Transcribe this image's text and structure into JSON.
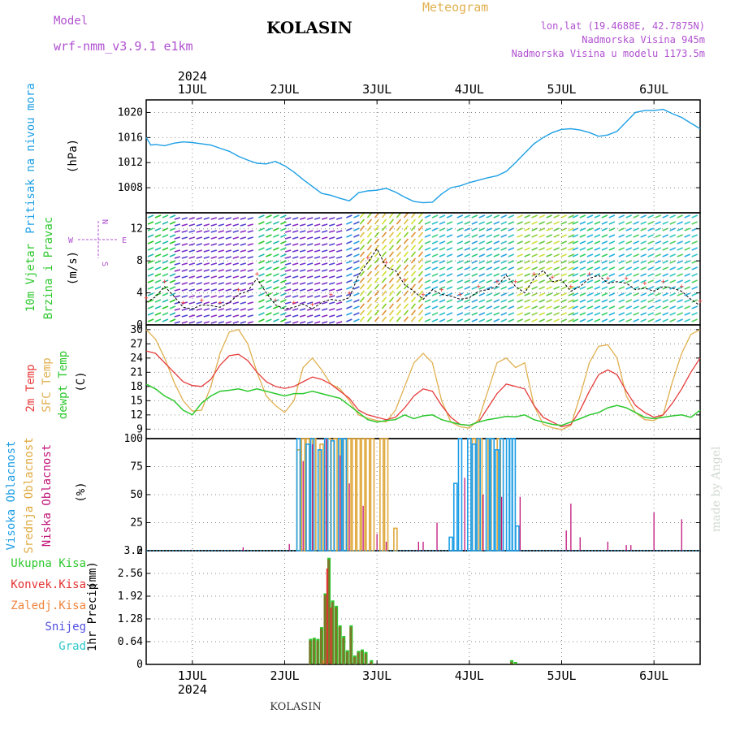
{
  "header": {
    "model_label": "Model",
    "model_name": "wrf-nmm_v3.9.1  e1km",
    "title": "KOLASIN",
    "meteogram_label": "Meteogram",
    "coords": "lon,lat (19.4688E, 42.7875N)",
    "altitude": "Nadmorska Visina 945m",
    "model_altitude": "Nadmorska Visina u modelu 1173.5m"
  },
  "footer_title": "KOLASIN",
  "watermark": "made by Angel",
  "colors": {
    "pressure": "#1ea0e6",
    "temp2m": "#e63c3c",
    "sfc": "#e0b050",
    "dew": "#2ec82e",
    "purple": "#b050d0",
    "high": "#1e9ee6",
    "mid": "#e0aa40",
    "low": "#c0147a",
    "precip_total": "#2ec82e",
    "precip_conv": "#e63232",
    "precip_frz": "#f0843c",
    "precip_snow": "#5050e0",
    "precip_grad": "#30c8c8",
    "precip_bar": "#7a7a28"
  },
  "chart_data": {
    "type": "line",
    "year": "2024",
    "x_axis": {
      "ticks": [
        "1JUL",
        "2JUL",
        "3JUL",
        "4JUL",
        "5JUL",
        "6JUL"
      ],
      "xlim_days": [
        0.5,
        6.5
      ]
    },
    "panels": [
      {
        "id": "pressure",
        "ylabel": "Pritisak na nivou mora",
        "unit": "(hPa)",
        "ylim": [
          1004,
          1022
        ],
        "yticks": [
          1008,
          1012,
          1016,
          1020
        ],
        "series": [
          {
            "key": "pressure",
            "color": "#1ea0e6",
            "x": [
              0.5,
              0.55,
              0.6,
              0.7,
              0.8,
              0.9,
              1.0,
              1.1,
              1.2,
              1.3,
              1.4,
              1.5,
              1.6,
              1.7,
              1.8,
              1.9,
              2.0,
              2.1,
              2.2,
              2.3,
              2.4,
              2.5,
              2.6,
              2.7,
              2.8,
              2.9,
              3.0,
              3.1,
              3.2,
              3.3,
              3.4,
              3.5,
              3.6,
              3.7,
              3.8,
              3.9,
              4.0,
              4.1,
              4.2,
              4.3,
              4.4,
              4.5,
              4.6,
              4.7,
              4.8,
              4.9,
              5.0,
              5.1,
              5.2,
              5.3,
              5.4,
              5.5,
              5.6,
              5.7,
              5.8,
              5.9,
              6.0,
              6.1,
              6.2,
              6.3,
              6.4,
              6.5
            ],
            "y": [
              1016,
              1014.8,
              1014.9,
              1014.7,
              1015.1,
              1015.3,
              1015.2,
              1015.0,
              1014.8,
              1014.3,
              1013.8,
              1013.0,
              1012.4,
              1011.9,
              1011.8,
              1012.2,
              1011.5,
              1010.5,
              1009.3,
              1008.2,
              1007.1,
              1006.8,
              1006.3,
              1005.9,
              1007.2,
              1007.5,
              1007.6,
              1007.9,
              1007.3,
              1006.5,
              1005.8,
              1005.6,
              1005.7,
              1007.0,
              1008.0,
              1008.3,
              1008.8,
              1009.2,
              1009.6,
              1009.9,
              1010.6,
              1012.0,
              1013.5,
              1015.0,
              1016.0,
              1016.8,
              1017.3,
              1017.4,
              1017.2,
              1016.8,
              1016.2,
              1016.4,
              1017.0,
              1018.5,
              1020.0,
              1020.3,
              1020.3,
              1020.5,
              1019.8,
              1019.2,
              1018.3,
              1017.4
            ]
          }
        ]
      },
      {
        "id": "wind",
        "ylabel": [
          "10m  Vjetar",
          "Brzina i Pravac"
        ],
        "unit": "(m/s)",
        "ylim": [
          0,
          14
        ],
        "yticks": [
          0,
          4,
          8,
          12
        ],
        "compass": {
          "n": "N",
          "s": "S",
          "e": "E",
          "w": "W"
        },
        "series": [
          {
            "key": "wind10m",
            "color": "#000000",
            "x": [
              0.5,
              0.6,
              0.7,
              0.8,
              0.9,
              1.0,
              1.1,
              1.2,
              1.3,
              1.4,
              1.5,
              1.6,
              1.7,
              1.8,
              1.9,
              2.0,
              2.1,
              2.2,
              2.3,
              2.4,
              2.5,
              2.6,
              2.7,
              2.8,
              2.9,
              3.0,
              3.1,
              3.2,
              3.3,
              3.4,
              3.5,
              3.6,
              3.7,
              3.8,
              3.9,
              4.0,
              4.1,
              4.2,
              4.3,
              4.4,
              4.5,
              4.6,
              4.7,
              4.8,
              4.9,
              5.0,
              5.1,
              5.2,
              5.3,
              5.4,
              5.5,
              5.6,
              5.7,
              5.8,
              5.9,
              6.0,
              6.1,
              6.2,
              6.3,
              6.4,
              6.5
            ],
            "y": [
              2.8,
              3.5,
              4.8,
              3.6,
              2.2,
              2.0,
              2.5,
              2.4,
              2.2,
              2.8,
              3.8,
              4.2,
              5.8,
              4.0,
              2.5,
              2.0,
              2.2,
              2.6,
              2.0,
              2.8,
              3.2,
              3.0,
              3.4,
              6.2,
              7.8,
              9.5,
              7.2,
              6.8,
              5.0,
              4.2,
              3.2,
              4.4,
              3.8,
              3.6,
              3.2,
              3.4,
              4.2,
              4.4,
              4.8,
              6.2,
              4.8,
              4.0,
              5.8,
              6.8,
              5.4,
              5.6,
              4.2,
              4.8,
              5.8,
              6.2,
              5.2,
              5.4,
              5.2,
              4.4,
              4.6,
              4.2,
              4.8,
              4.6,
              4.2,
              3.2,
              2.4
            ]
          }
        ]
      },
      {
        "id": "temperature",
        "ylabel": [
          "2m  Temp",
          "SFC  Temp",
          "dewpt  Temp"
        ],
        "unit": "(C)",
        "ylim": [
          7,
          31
        ],
        "yticks": [
          9,
          12,
          15,
          18,
          21,
          24,
          27,
          30
        ],
        "series": [
          {
            "key": "temp2m",
            "color": "#e63c3c",
            "x": [
              0.5,
              0.6,
              0.7,
              0.8,
              0.9,
              1.0,
              1.1,
              1.2,
              1.3,
              1.4,
              1.5,
              1.6,
              1.7,
              1.8,
              1.9,
              2.0,
              2.1,
              2.2,
              2.3,
              2.4,
              2.5,
              2.6,
              2.7,
              2.8,
              2.9,
              3.0,
              3.1,
              3.2,
              3.3,
              3.4,
              3.5,
              3.6,
              3.7,
              3.8,
              3.9,
              4.0,
              4.1,
              4.2,
              4.3,
              4.4,
              4.5,
              4.6,
              4.7,
              4.8,
              4.9,
              5.0,
              5.1,
              5.2,
              5.3,
              5.4,
              5.5,
              5.6,
              5.7,
              5.8,
              5.9,
              6.0,
              6.1,
              6.2,
              6.3,
              6.4,
              6.5
            ],
            "y": [
              25.5,
              25,
              23,
              21,
              19,
              18.2,
              18,
              19.5,
              22.5,
              24.5,
              24.8,
              23.5,
              21,
              19,
              18,
              17.6,
              18,
              19,
              20,
              19.5,
              18.5,
              17,
              15.5,
              13,
              12,
              11.5,
              11,
              11.5,
              13.5,
              16,
              17.5,
              17,
              14,
              11.5,
              10,
              9.8,
              10.5,
              13.5,
              16.5,
              18.5,
              18,
              17.5,
              14,
              11.5,
              10.5,
              9.5,
              10,
              13,
              17,
              20.5,
              21.5,
              20.5,
              17,
              14,
              12.5,
              11.5,
              12,
              14.5,
              17.5,
              21,
              24
            ]
          },
          {
            "key": "sfc",
            "color": "#e0b050",
            "x": [
              0.5,
              0.6,
              0.7,
              0.8,
              0.9,
              1.0,
              1.1,
              1.2,
              1.3,
              1.4,
              1.5,
              1.6,
              1.7,
              1.8,
              1.9,
              2.0,
              2.1,
              2.2,
              2.3,
              2.4,
              2.5,
              2.6,
              2.7,
              2.8,
              2.9,
              3.0,
              3.1,
              3.2,
              3.3,
              3.4,
              3.5,
              3.6,
              3.7,
              3.8,
              3.9,
              4.0,
              4.1,
              4.2,
              4.3,
              4.4,
              4.5,
              4.6,
              4.7,
              4.8,
              4.9,
              5.0,
              5.1,
              5.2,
              5.3,
              5.4,
              5.5,
              5.6,
              5.7,
              5.8,
              5.9,
              6.0,
              6.1,
              6.2,
              6.3,
              6.4,
              6.5
            ],
            "y": [
              30,
              28,
              24,
              19,
              15,
              12.8,
              13,
              18,
              25,
              29.5,
              30,
              27,
              21,
              16,
              14,
              12.5,
              15,
              22,
              24,
              21.5,
              18.5,
              17.5,
              15,
              12,
              11.3,
              10.8,
              10.5,
              13,
              18,
              23,
              25,
              23,
              15,
              10.5,
              9.5,
              9.2,
              11,
              17,
              23,
              24,
              22,
              23,
              14,
              10,
              9.3,
              8.9,
              9.8,
              16,
              23,
              26.5,
              26.8,
              24,
              16,
              12.5,
              11,
              10.8,
              12,
              19,
              25,
              29,
              30
            ]
          },
          {
            "key": "dew",
            "color": "#2ec82e",
            "x": [
              0.5,
              0.6,
              0.7,
              0.8,
              0.9,
              1.0,
              1.1,
              1.2,
              1.3,
              1.4,
              1.5,
              1.6,
              1.7,
              1.8,
              1.9,
              2.0,
              2.1,
              2.2,
              2.3,
              2.4,
              2.5,
              2.6,
              2.7,
              2.8,
              2.9,
              3.0,
              3.1,
              3.2,
              3.3,
              3.4,
              3.5,
              3.6,
              3.7,
              3.8,
              3.9,
              4.0,
              4.1,
              4.2,
              4.3,
              4.4,
              4.5,
              4.6,
              4.7,
              4.8,
              4.9,
              5.0,
              5.1,
              5.2,
              5.3,
              5.4,
              5.5,
              5.6,
              5.7,
              5.8,
              5.9,
              6.0,
              6.1,
              6.2,
              6.3,
              6.4,
              6.5
            ],
            "y": [
              18.5,
              17.5,
              16,
              15,
              13,
              12,
              14.5,
              16,
              17,
              17.2,
              17.5,
              17,
              17.5,
              17,
              16.5,
              16,
              16.5,
              16.5,
              17,
              16.5,
              16,
              15.5,
              14,
              12.5,
              11,
              10.5,
              10.8,
              11,
              12,
              11.2,
              11.8,
              12,
              11,
              10.5,
              10,
              9.8,
              10.5,
              11,
              11.3,
              11.7,
              11.6,
              12,
              11,
              10.5,
              10,
              9.8,
              10.5,
              11.2,
              12,
              12.5,
              13.5,
              14,
              13.5,
              12.5,
              11.5,
              11.2,
              11.5,
              11.8,
              12,
              11.5,
              13
            ]
          }
        ]
      },
      {
        "id": "cloud",
        "ylabel": [
          "Visoka  Oblacnost",
          "Srednja  Oblacnost",
          "Niska  Oblacnost"
        ],
        "unit": "(%)",
        "ylim": [
          0,
          100
        ],
        "yticks": [
          0,
          25,
          50,
          75,
          100
        ],
        "high": {
          "x": [
            2.15,
            2.25,
            2.3,
            2.38,
            2.45,
            2.52,
            2.6,
            2.65,
            3.8,
            3.85,
            3.9,
            4.0,
            4.05,
            4.1,
            4.2,
            4.25,
            4.3,
            4.35,
            4.42,
            4.45,
            4.48,
            4.52
          ],
          "y": [
            100,
            95,
            100,
            90,
            100,
            98,
            100,
            100,
            12,
            60,
            100,
            100,
            95,
            100,
            100,
            100,
            90,
            100,
            100,
            100,
            100,
            22
          ]
        },
        "mid": {
          "x": [
            2.15,
            2.2,
            2.25,
            2.32,
            2.4,
            2.48,
            2.55,
            2.62,
            2.7,
            2.75,
            2.8,
            2.85,
            2.9,
            2.95,
            3.05,
            3.1,
            3.2,
            4.05,
            4.12,
            4.22,
            4.32
          ],
          "y": [
            90,
            100,
            100,
            100,
            95,
            100,
            100,
            100,
            100,
            100,
            100,
            100,
            100,
            100,
            100,
            100,
            20,
            100,
            100,
            100,
            100
          ]
        },
        "low": {
          "x": [
            1.55,
            2.05,
            2.2,
            2.3,
            2.45,
            2.6,
            2.7,
            2.85,
            3.0,
            3.1,
            3.45,
            3.5,
            3.65,
            3.95,
            4.15,
            4.35,
            4.55,
            5.05,
            5.1,
            5.2,
            5.5,
            5.7,
            5.75,
            6.0,
            6.3
          ],
          "y": [
            3,
            6,
            80,
            95,
            100,
            85,
            60,
            40,
            15,
            8,
            8,
            8,
            25,
            65,
            50,
            48,
            48,
            18,
            42,
            12,
            8,
            5,
            5,
            34,
            28
          ]
        }
      },
      {
        "id": "precip",
        "ylabel": "1hr Precip",
        "unit": "(mm)",
        "ylim": [
          0,
          3.2
        ],
        "yticks": [
          0,
          0.64,
          1.28,
          1.92,
          2.56,
          3.2
        ],
        "legend": [
          "Ukupna  Kisa",
          "Konvek.Kisa",
          "Zaledj.Kisa",
          "Snijeg",
          "Grad"
        ],
        "total": {
          "x": [
            2.28,
            2.32,
            2.36,
            2.4,
            2.44,
            2.48,
            2.52,
            2.56,
            2.6,
            2.64,
            2.68,
            2.72,
            2.76,
            2.8,
            2.84,
            2.88,
            2.94,
            4.46,
            4.5
          ],
          "y": [
            0.72,
            0.75,
            0.72,
            1.05,
            2.0,
            3.0,
            1.8,
            1.65,
            1.1,
            0.8,
            0.4,
            1.1,
            0.25,
            0.38,
            0.42,
            0.35,
            0.12,
            0.12,
            0.07
          ]
        },
        "conv": {
          "x": [
            2.46,
            2.5
          ],
          "y": [
            2.7,
            1.6
          ]
        },
        "frz": {
          "x": [
            2.42
          ],
          "y": [
            0.12
          ]
        }
      }
    ]
  }
}
